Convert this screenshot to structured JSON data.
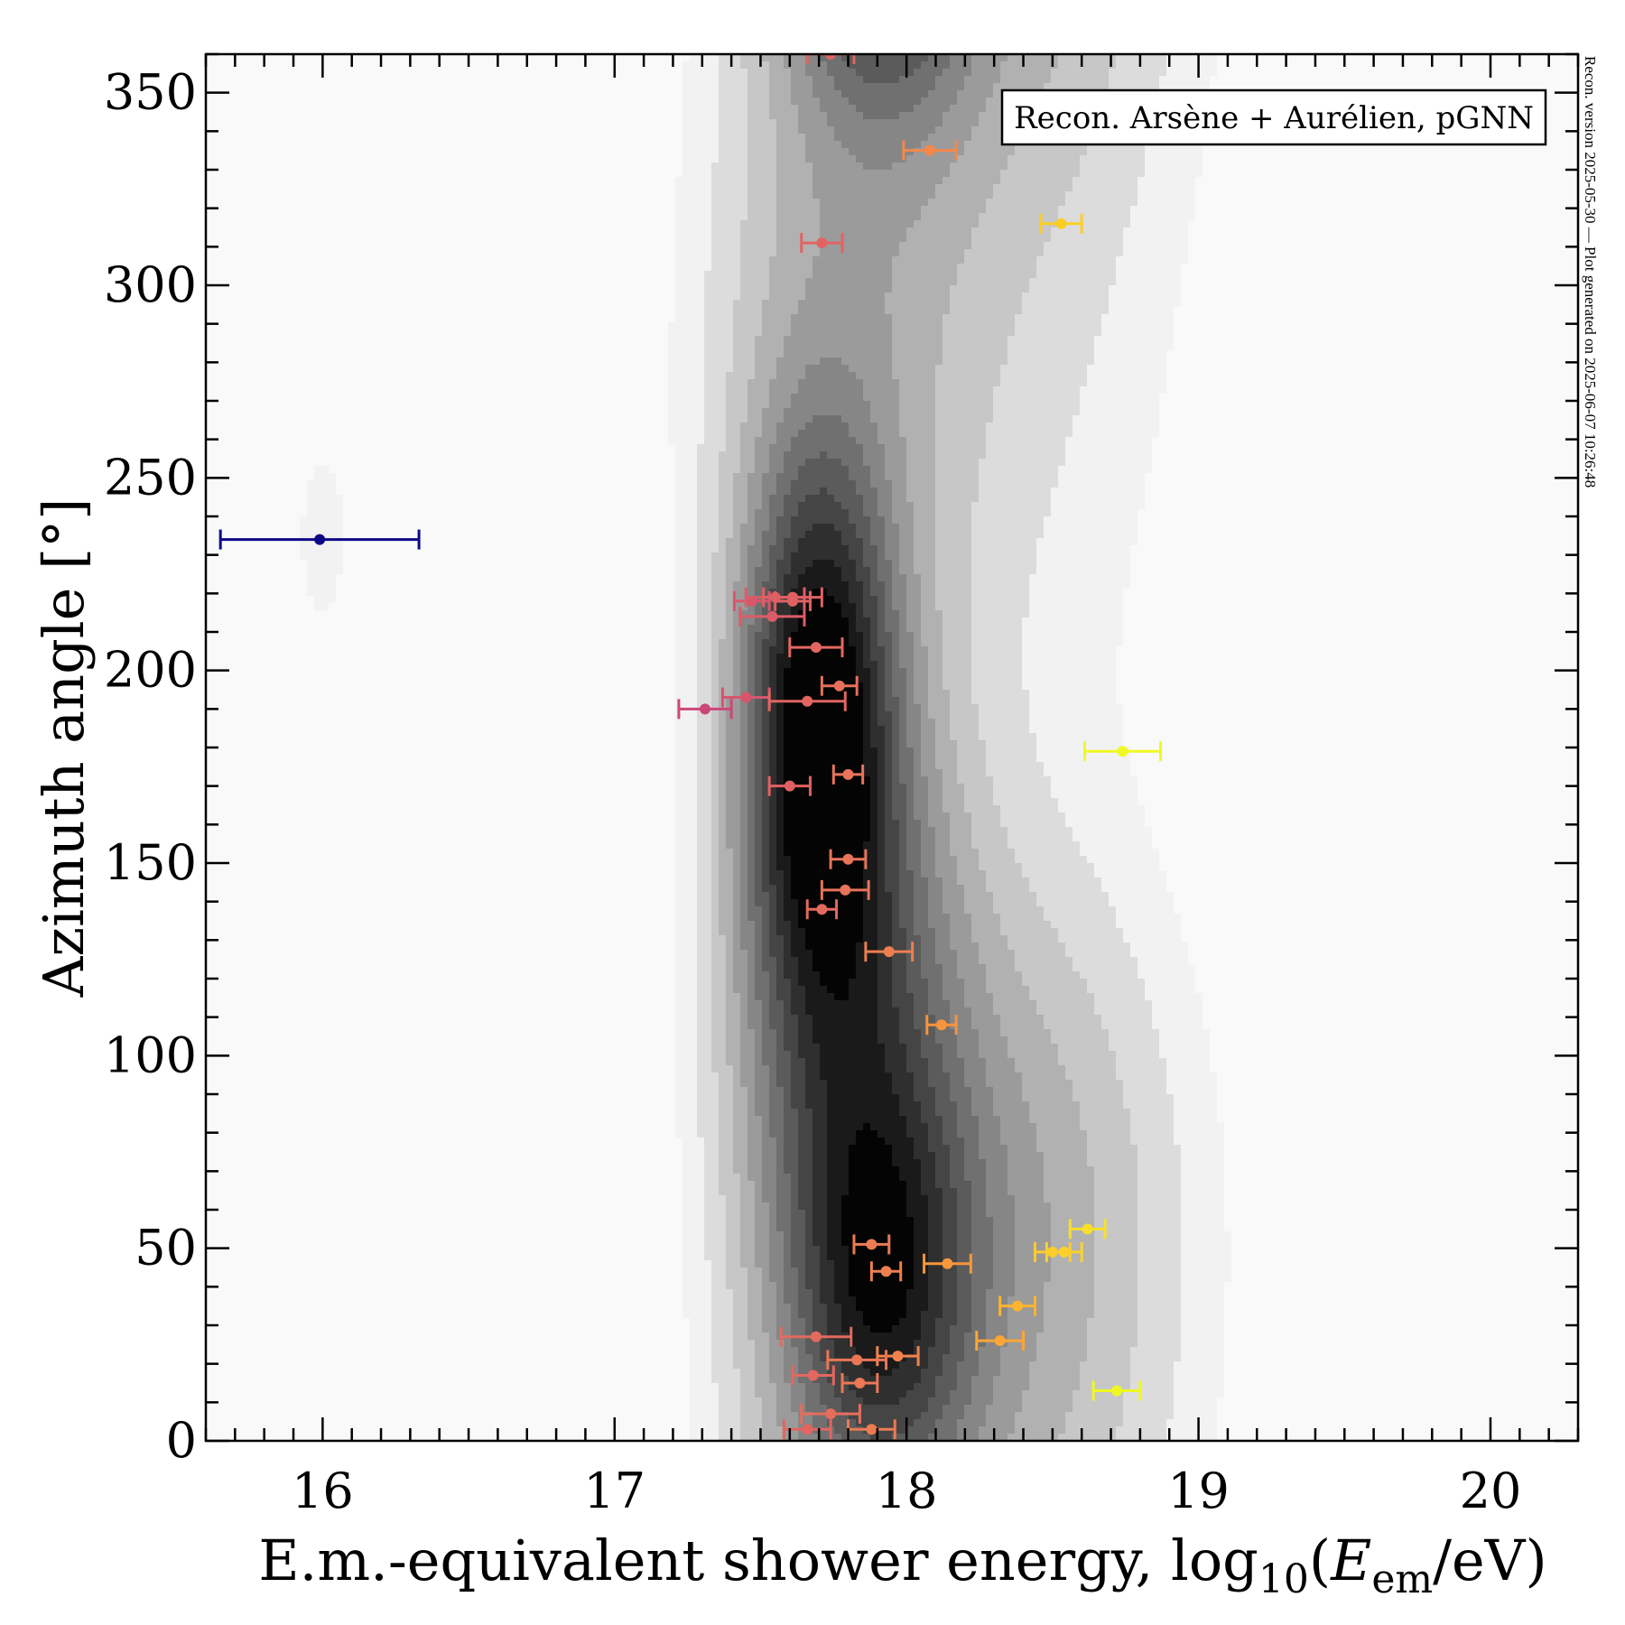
{
  "chart_data": {
    "type": "scatter",
    "title": "",
    "xlabel": "E.m.-equivalent shower energy, log10(Eem / eV)",
    "xlabel_parts": {
      "prefix": "E.m.-equivalent shower energy, log",
      "sub": "10",
      "open": "(",
      "var": "E",
      "var_sub": "em",
      "tail": "/eV)"
    },
    "ylabel": "Azimuth angle [°]",
    "xlim": [
      15.6,
      20.3
    ],
    "ylim": [
      0,
      360
    ],
    "xticks": [
      16,
      17,
      18,
      19,
      20
    ],
    "xtick_labels": [
      "16",
      "17",
      "18",
      "19",
      "20"
    ],
    "yticks": [
      0,
      50,
      100,
      150,
      200,
      250,
      300,
      350
    ],
    "ytick_labels": [
      "0",
      "50",
      "100",
      "150",
      "200",
      "250",
      "300",
      "350"
    ],
    "grid": false,
    "legend": {
      "text": "Recon. Arsène + Aurélien, pGNN",
      "placement": "top-right"
    },
    "side_note": "Recon. version 2025-05-30 — Plot generated on 2025-06-07 10:26:48",
    "color_encoding": "point color encodes energy (plasma colormap: dark blue low → yellow high)",
    "background": {
      "type": "kde-contour",
      "levels": 12,
      "description": "grey filled density contours; main ridge near log10E≈17.7, azimuth≈185°, secondary lobe near 17.9, 40°; faint blob near 16.0, 235°"
    },
    "points": [
      {
        "x": 15.99,
        "y": 234,
        "xerr": 0.34,
        "color": "#0d0887"
      },
      {
        "x": 17.74,
        "y": 360,
        "xerr": 0.08,
        "color": "#e16462"
      },
      {
        "x": 18.08,
        "y": 335,
        "xerr": 0.09,
        "color": "#f48849"
      },
      {
        "x": 18.53,
        "y": 316,
        "xerr": 0.07,
        "color": "#fcce25"
      },
      {
        "x": 17.71,
        "y": 311,
        "xerr": 0.07,
        "color": "#e16462"
      },
      {
        "x": 17.47,
        "y": 218,
        "xerr": 0.06,
        "color": "#d8576b"
      },
      {
        "x": 17.55,
        "y": 219,
        "xerr": 0.1,
        "color": "#dc5c68"
      },
      {
        "x": 17.61,
        "y": 219,
        "xerr": 0.1,
        "color": "#e06163"
      },
      {
        "x": 17.61,
        "y": 218,
        "xerr": 0.06,
        "color": "#e06163"
      },
      {
        "x": 17.54,
        "y": 214,
        "xerr": 0.11,
        "color": "#db5c68"
      },
      {
        "x": 17.69,
        "y": 206,
        "xerr": 0.09,
        "color": "#e36760"
      },
      {
        "x": 17.77,
        "y": 196,
        "xerr": 0.06,
        "color": "#e6705a"
      },
      {
        "x": 17.45,
        "y": 193,
        "xerr": 0.08,
        "color": "#d6556d"
      },
      {
        "x": 17.66,
        "y": 192,
        "xerr": 0.13,
        "color": "#e26561"
      },
      {
        "x": 17.31,
        "y": 190,
        "xerr": 0.09,
        "color": "#cc4778"
      },
      {
        "x": 18.74,
        "y": 179,
        "xerr": 0.13,
        "color": "#f0f921"
      },
      {
        "x": 17.8,
        "y": 173,
        "xerr": 0.05,
        "color": "#e8745a"
      },
      {
        "x": 17.6,
        "y": 170,
        "xerr": 0.07,
        "color": "#e06163"
      },
      {
        "x": 17.8,
        "y": 151,
        "xerr": 0.06,
        "color": "#e8745a"
      },
      {
        "x": 17.79,
        "y": 143,
        "xerr": 0.08,
        "color": "#e7735a"
      },
      {
        "x": 17.71,
        "y": 138,
        "xerr": 0.05,
        "color": "#e36a5e"
      },
      {
        "x": 17.94,
        "y": 127,
        "xerr": 0.08,
        "color": "#ee7f4f"
      },
      {
        "x": 18.12,
        "y": 108,
        "xerr": 0.05,
        "color": "#f7943e"
      },
      {
        "x": 18.62,
        "y": 55,
        "xerr": 0.06,
        "color": "#f8e02a"
      },
      {
        "x": 17.88,
        "y": 51,
        "xerr": 0.06,
        "color": "#ec7b53"
      },
      {
        "x": 18.54,
        "y": 49,
        "xerr": 0.06,
        "color": "#fad22a"
      },
      {
        "x": 18.5,
        "y": 49,
        "xerr": 0.06,
        "color": "#fbcc2b"
      },
      {
        "x": 18.14,
        "y": 46,
        "xerr": 0.08,
        "color": "#f8963c"
      },
      {
        "x": 17.93,
        "y": 44,
        "xerr": 0.05,
        "color": "#ef7f4f"
      },
      {
        "x": 18.38,
        "y": 35,
        "xerr": 0.06,
        "color": "#fdb42f"
      },
      {
        "x": 18.32,
        "y": 26,
        "xerr": 0.08,
        "color": "#fca636"
      },
      {
        "x": 17.69,
        "y": 27,
        "xerr": 0.12,
        "color": "#e36a5e"
      },
      {
        "x": 17.97,
        "y": 22,
        "xerr": 0.07,
        "color": "#f0834c"
      },
      {
        "x": 17.83,
        "y": 21,
        "xerr": 0.1,
        "color": "#ea7656"
      },
      {
        "x": 17.68,
        "y": 17,
        "xerr": 0.07,
        "color": "#e36760"
      },
      {
        "x": 17.84,
        "y": 15,
        "xerr": 0.06,
        "color": "#ea7756"
      },
      {
        "x": 18.72,
        "y": 13,
        "xerr": 0.08,
        "color": "#eff821"
      },
      {
        "x": 17.74,
        "y": 7,
        "xerr": 0.1,
        "color": "#e56d5c"
      },
      {
        "x": 17.66,
        "y": 3,
        "xerr": 0.08,
        "color": "#e26561"
      },
      {
        "x": 17.88,
        "y": 3,
        "xerr": 0.08,
        "color": "#ec7b53"
      }
    ]
  }
}
